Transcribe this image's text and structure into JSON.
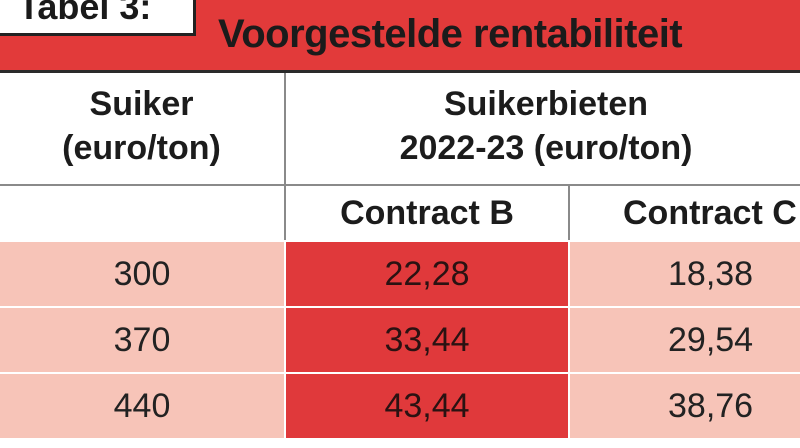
{
  "table_label": "Tabel 3:",
  "title": "Voorgestelde rentabiliteit",
  "headers": {
    "suiker_line1": "Suiker",
    "suiker_line2": "(euro/ton)",
    "bieten_line1": "Suikerbieten",
    "bieten_line2": "2022-23 (euro/ton)",
    "contract_b": "Contract B",
    "contract_c": "Contract C"
  },
  "rows": [
    {
      "suiker": "300",
      "contract_b": "22,28",
      "contract_c": "18,38"
    },
    {
      "suiker": "370",
      "contract_b": "33,44",
      "contract_c": "29,54"
    },
    {
      "suiker": "440",
      "contract_b": "43,44",
      "contract_c": "38,76"
    }
  ],
  "colors": {
    "title_red": "#e23a3a",
    "highlight_red": "#e0393b",
    "light_salmon": "#f7c4b8"
  }
}
